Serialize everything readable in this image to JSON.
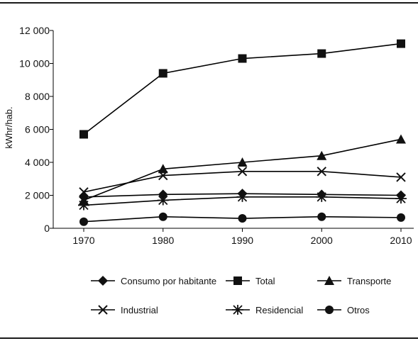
{
  "chart_data": {
    "type": "line",
    "title": "",
    "xlabel": "",
    "ylabel": "kWhr/hab.",
    "x": [
      1970,
      1980,
      1990,
      2000,
      2010
    ],
    "x_tick_labels": [
      "1970",
      "1980",
      "1990",
      "2000",
      "2010"
    ],
    "ylim": [
      0,
      12000
    ],
    "y_ticks": [
      0,
      2000,
      4000,
      6000,
      8000,
      10000,
      12000
    ],
    "y_tick_labels": [
      "0",
      "2 000",
      "4 000",
      "6 000",
      "8 000",
      "10 000",
      "12 000"
    ],
    "grid": false,
    "legend_position": "bottom",
    "series": [
      {
        "name": "Consumo por habitante",
        "marker": "diamond",
        "values": [
          1900,
          2050,
          2100,
          2050,
          2000
        ]
      },
      {
        "name": "Total",
        "marker": "square",
        "values": [
          5700,
          9400,
          10300,
          10600,
          11200
        ]
      },
      {
        "name": "Transporte",
        "marker": "triangle",
        "values": [
          1700,
          3600,
          4000,
          4400,
          5400
        ]
      },
      {
        "name": "Industrial",
        "marker": "x",
        "values": [
          2200,
          3200,
          3450,
          3450,
          3100
        ]
      },
      {
        "name": "Residencial",
        "marker": "asterisk",
        "values": [
          1400,
          1700,
          1900,
          1900,
          1800
        ]
      },
      {
        "name": "Otros",
        "marker": "circle",
        "values": [
          400,
          700,
          600,
          700,
          650
        ]
      }
    ],
    "colors": {
      "line": "#000000",
      "marker": "#111111",
      "rule": "#1a1a1a"
    }
  }
}
